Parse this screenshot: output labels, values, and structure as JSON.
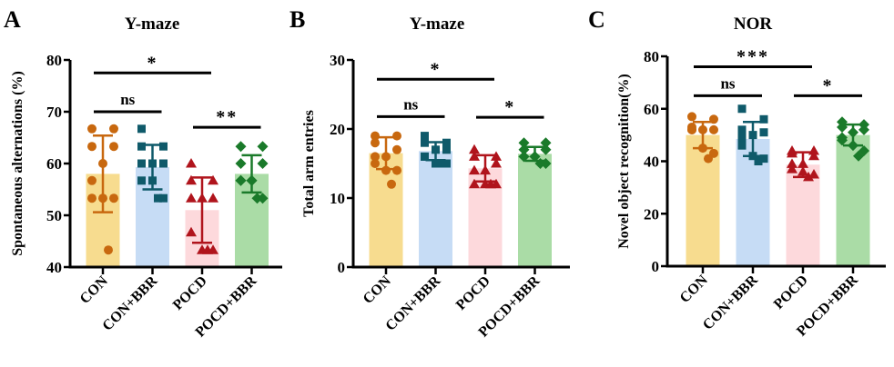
{
  "colors": {
    "bar_fill": [
      "#f7dc8f",
      "#c6dcf5",
      "#fdd9dc",
      "#aadca6"
    ],
    "marker": [
      "#c8680f",
      "#0f5a6a",
      "#b0141c",
      "#1a7a2a"
    ],
    "markers": [
      "circle",
      "square",
      "triangle",
      "diamond"
    ]
  },
  "chart_data": [
    {
      "type": "bar",
      "panel_letter": "A",
      "title": "Y-maze",
      "ylabel": "Spontaneous alternations (%)",
      "xlabel": "",
      "ylim": [
        40,
        80
      ],
      "yticks": [
        40,
        50,
        60,
        70,
        80
      ],
      "categories": [
        "CON",
        "CON+BBR",
        "POCD",
        "POCD+BBR"
      ],
      "values": [
        58,
        59.3,
        51,
        58
      ],
      "sd": [
        7.4,
        4.3,
        6.3,
        3.6
      ],
      "points": [
        [
          66.7,
          66.7,
          63.3,
          63.3,
          60,
          56.7,
          53.3,
          53.3,
          53.3,
          43.3
        ],
        [
          66.7,
          63.3,
          63.3,
          60,
          60,
          60,
          56.7,
          56.7,
          53.3,
          53.3
        ],
        [
          60,
          56.7,
          56.7,
          53.3,
          53.3,
          53.3,
          46.7,
          43.3,
          43.3,
          43.3
        ],
        [
          63.3,
          63.3,
          60,
          60,
          56.7,
          56.7,
          56.7,
          56.7,
          53.3,
          53.3
        ]
      ],
      "significance": [
        {
          "from": 0,
          "to": 2,
          "y": 77.5,
          "label": "*"
        },
        {
          "from": 0,
          "to": 1,
          "y": 70,
          "label": "ns"
        },
        {
          "from": 2,
          "to": 3,
          "y": 67,
          "label": "**"
        }
      ]
    },
    {
      "type": "bar",
      "panel_letter": "B",
      "title": "Y-maze",
      "ylabel": "Total arm entries",
      "xlabel": "",
      "ylim": [
        0,
        30
      ],
      "yticks": [
        0,
        10,
        20,
        30
      ],
      "categories": [
        "CON",
        "CON+BBR",
        "POCD",
        "POCD+BBR"
      ],
      "values": [
        16.5,
        16.8,
        14.3,
        16.4
      ],
      "sd": [
        2.3,
        1.3,
        1.9,
        1.0
      ],
      "points": [
        [
          19,
          19,
          18,
          17,
          16,
          16,
          15,
          14,
          14,
          12
        ],
        [
          19,
          18,
          18,
          17,
          17,
          16,
          16,
          15,
          15,
          15
        ],
        [
          17,
          16,
          16,
          15,
          14,
          14,
          12,
          12,
          12,
          12
        ],
        [
          18,
          18,
          17,
          17,
          16,
          16,
          16,
          16,
          15,
          15
        ]
      ],
      "significance": [
        {
          "from": 0,
          "to": 2,
          "y": 27.2,
          "label": "*"
        },
        {
          "from": 0,
          "to": 1,
          "y": 21.8,
          "label": "ns"
        },
        {
          "from": 2,
          "to": 3,
          "y": 21.7,
          "label": "*"
        }
      ]
    },
    {
      "type": "bar",
      "panel_letter": "C",
      "title": "NOR",
      "ylabel": "Novel object recognition(%)",
      "xlabel": "",
      "ylim": [
        0,
        80
      ],
      "yticks": [
        0,
        20,
        40,
        60,
        80
      ],
      "categories": [
        "CON",
        "CON+BBR",
        "POCD",
        "POCD+BBR"
      ],
      "values": [
        50,
        48.5,
        38.7,
        50
      ],
      "sd": [
        5,
        6.5,
        4.7,
        4
      ],
      "points": [
        [
          57,
          56,
          53,
          52,
          52,
          52,
          52,
          45,
          43,
          41
        ],
        [
          60,
          56,
          52,
          51,
          50,
          49,
          46,
          42,
          41,
          40
        ],
        [
          44,
          44,
          43,
          42,
          39,
          39,
          37,
          36,
          35,
          34
        ],
        [
          55,
          54,
          53,
          52,
          51,
          49,
          48,
          46,
          44,
          42
        ]
      ],
      "significance": [
        {
          "from": 0,
          "to": 2,
          "y": 76,
          "label": "***"
        },
        {
          "from": 0,
          "to": 1,
          "y": 65,
          "label": "ns"
        },
        {
          "from": 2,
          "to": 3,
          "y": 65,
          "label": "*"
        }
      ]
    }
  ]
}
